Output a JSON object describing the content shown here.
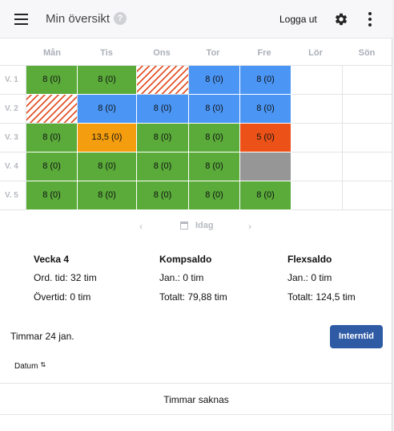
{
  "header": {
    "title": "Min översikt",
    "help_icon": "question-circle-icon",
    "help_glyph": "?",
    "logout_label": "Logga ut",
    "settings_icon": "gear-icon",
    "more_icon": "more-vertical-icon"
  },
  "calendar": {
    "days": [
      "Mån",
      "Tis",
      "Ons",
      "Tor",
      "Fre",
      "Lör",
      "Sön"
    ],
    "weeks": [
      {
        "label": "V. 1",
        "cells": [
          {
            "text": "8 (0)",
            "status": "green"
          },
          {
            "text": "8 (0)",
            "status": "green"
          },
          {
            "text": "",
            "status": "hatch"
          },
          {
            "text": "8 (0)",
            "status": "blue"
          },
          {
            "text": "8 (0)",
            "status": "blue"
          },
          {
            "text": "",
            "status": "empty"
          },
          {
            "text": "",
            "status": "empty"
          }
        ]
      },
      {
        "label": "V. 2",
        "cells": [
          {
            "text": "",
            "status": "hatch"
          },
          {
            "text": "8 (0)",
            "status": "blue"
          },
          {
            "text": "8 (0)",
            "status": "blue"
          },
          {
            "text": "8 (0)",
            "status": "blue"
          },
          {
            "text": "8 (0)",
            "status": "blue"
          },
          {
            "text": "",
            "status": "empty"
          },
          {
            "text": "",
            "status": "empty"
          }
        ]
      },
      {
        "label": "V. 3",
        "cells": [
          {
            "text": "8 (0)",
            "status": "green"
          },
          {
            "text": "13,5 (0)",
            "status": "orange"
          },
          {
            "text": "8 (0)",
            "status": "green"
          },
          {
            "text": "8 (0)",
            "status": "green"
          },
          {
            "text": "5 (0)",
            "status": "red"
          },
          {
            "text": "",
            "status": "empty"
          },
          {
            "text": "",
            "status": "empty"
          }
        ]
      },
      {
        "label": "V. 4",
        "cells": [
          {
            "text": "8 (0)",
            "status": "green"
          },
          {
            "text": "8 (0)",
            "status": "green"
          },
          {
            "text": "8 (0)",
            "status": "green"
          },
          {
            "text": "8 (0)",
            "status": "green"
          },
          {
            "text": "",
            "status": "gray"
          },
          {
            "text": "",
            "status": "empty"
          },
          {
            "text": "",
            "status": "empty"
          }
        ]
      },
      {
        "label": "V. 5",
        "cells": [
          {
            "text": "8 (0)",
            "status": "green"
          },
          {
            "text": "8 (0)",
            "status": "green"
          },
          {
            "text": "8 (0)",
            "status": "green"
          },
          {
            "text": "8 (0)",
            "status": "green"
          },
          {
            "text": "8 (0)",
            "status": "green"
          },
          {
            "text": "",
            "status": "empty"
          },
          {
            "text": "",
            "status": "empty"
          }
        ]
      }
    ],
    "colors": {
      "green": "#5aab3a",
      "blue": "#4b96f5",
      "orange": "#f49d0f",
      "red": "#ec5218",
      "gray": "#969696",
      "hatch": "#e4542a"
    }
  },
  "nav": {
    "prev_glyph": "‹",
    "next_glyph": "›",
    "calendar_icon": "calendar-icon",
    "today_label": "Idag"
  },
  "summary": {
    "week": {
      "title": "Vecka 4",
      "line1": "Ord. tid: 32 tim",
      "line2": "Övertid: 0 tim"
    },
    "komp": {
      "title": "Kompsaldo",
      "line1": "Jan.: 0 tim",
      "line2": "Totalt: 79,88 tim"
    },
    "flex": {
      "title": "Flexsaldo",
      "line1": "Jan.: 0 tim",
      "line2": "Totalt: 124,5 tim"
    }
  },
  "hours": {
    "date_label": "Timmar 24 jan.",
    "intern_button": "Interntid",
    "column_datum": "Datum",
    "sort_glyph": "⇅",
    "missing_text": "Timmar saknas"
  }
}
